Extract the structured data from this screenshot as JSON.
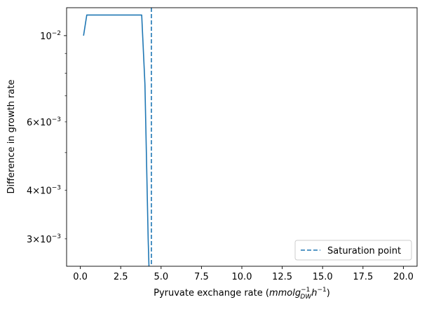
{
  "chart_data": {
    "type": "line",
    "title": "",
    "xlabel": "Pyruvate exchange rate",
    "xlabel_unit_parts": {
      "open": "(",
      "base": "mmolg",
      "sup": "−1",
      "sub": "DW",
      "unit2": "h",
      "sup2": "−1",
      "close": ")"
    },
    "ylabel": "Difference in growth rate",
    "xlim": [
      -0.85,
      20.85
    ],
    "ylim": [
      0.00255,
      0.0118
    ],
    "yscale": "log",
    "x_ticks": [
      0.0,
      2.5,
      5.0,
      7.5,
      10.0,
      12.5,
      15.0,
      17.5,
      20.0
    ],
    "x_tick_labels": [
      "0.0",
      "2.5",
      "5.0",
      "7.5",
      "10.0",
      "12.5",
      "15.0",
      "17.5",
      "20.0"
    ],
    "y_major_ticks": [
      0.01
    ],
    "y_labeled_ticks": [
      {
        "value": 0.01,
        "base": "10",
        "exp": "−2",
        "mantissa": ""
      },
      {
        "value": 0.006,
        "base": "10",
        "exp": "−3",
        "mantissa": "6×"
      },
      {
        "value": 0.004,
        "base": "10",
        "exp": "−3",
        "mantissa": "4×"
      },
      {
        "value": 0.003,
        "base": "10",
        "exp": "−3",
        "mantissa": "3×"
      }
    ],
    "y_minor_ticks": [
      0.003,
      0.004,
      0.005,
      0.006,
      0.007,
      0.008,
      0.009
    ],
    "series": [
      {
        "name": "",
        "color": "#1f77b4",
        "style": "solid",
        "x": [
          0.2,
          0.4,
          0.6,
          0.8,
          1.0,
          1.2,
          1.4,
          1.6,
          1.8,
          2.0,
          2.2,
          2.4,
          2.6,
          2.8,
          3.0,
          3.2,
          3.4,
          3.6,
          3.8,
          4.0,
          4.2,
          4.25
        ],
        "y": [
          0.01,
          0.0113,
          0.0113,
          0.0113,
          0.0113,
          0.0113,
          0.0113,
          0.0113,
          0.0113,
          0.0113,
          0.0113,
          0.0113,
          0.0113,
          0.0113,
          0.0113,
          0.0113,
          0.0113,
          0.0113,
          0.0113,
          0.0075,
          0.003,
          0.00255
        ]
      }
    ],
    "vlines": [
      {
        "name": "Saturation point",
        "x": 4.4,
        "color": "#1f77b4",
        "style": "dashed"
      }
    ],
    "legend": {
      "position": "lower-right",
      "entries": [
        "Saturation point"
      ]
    },
    "grid": false
  }
}
